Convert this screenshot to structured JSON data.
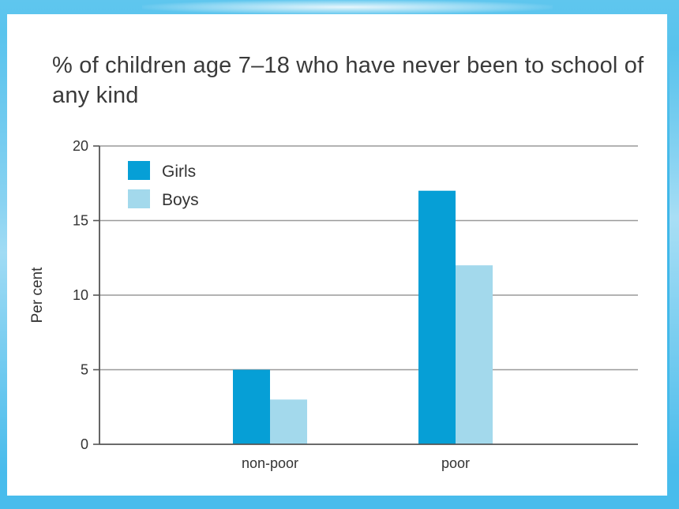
{
  "chart_data": {
    "type": "bar",
    "title": "% of children age 7–18 who have never been to school of any kind",
    "xlabel": "",
    "ylabel": "Per cent",
    "categories": [
      "non-poor",
      "poor"
    ],
    "series": [
      {
        "name": "Girls",
        "values": [
          5,
          17
        ],
        "color": "#069fd6"
      },
      {
        "name": "Boys",
        "values": [
          3,
          12
        ],
        "color": "#a3d9ec"
      }
    ],
    "ylim": [
      0,
      20
    ],
    "yticks": [
      0,
      5,
      10,
      15,
      20
    ],
    "grid": true,
    "legend": "top-left"
  }
}
